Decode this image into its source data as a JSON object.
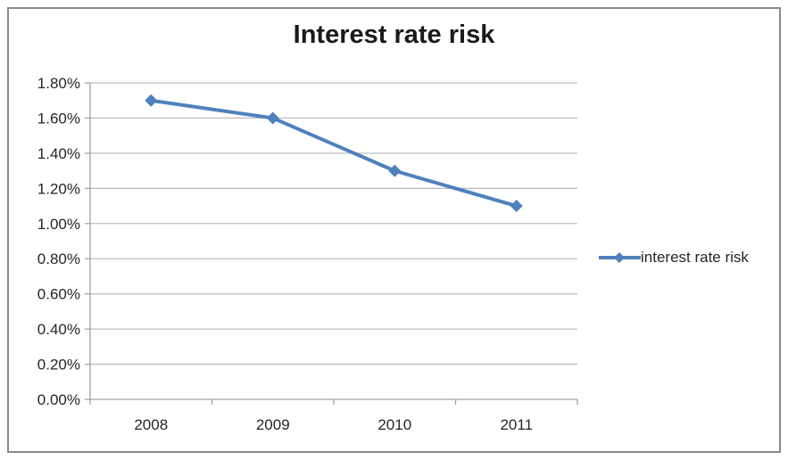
{
  "window": {
    "background": "#ffffff",
    "frame_border_color": "#8a8a8a"
  },
  "chart_data": {
    "type": "line",
    "title": "Interest rate risk",
    "categories": [
      "2008",
      "2009",
      "2010",
      "2011"
    ],
    "series": [
      {
        "name": "interest rate risk",
        "values": [
          1.7,
          1.6,
          1.3,
          1.1
        ],
        "color": "#4F81BD",
        "marker": "diamond"
      }
    ],
    "values_are_percent": true,
    "xlabel": "",
    "ylabel": "",
    "ylim": [
      0,
      1.8
    ],
    "y_tick_step": 0.2,
    "y_tick_labels": [
      "0.00%",
      "0.20%",
      "0.40%",
      "0.60%",
      "0.80%",
      "1.00%",
      "1.20%",
      "1.40%",
      "1.60%",
      "1.80%"
    ],
    "grid": "horizontal",
    "legend_position": "right",
    "colors": {
      "gridline": "#bfbfbf",
      "axis": "#a3a3a3",
      "label_text": "#262626",
      "title_text": "#1a1a1a"
    }
  }
}
